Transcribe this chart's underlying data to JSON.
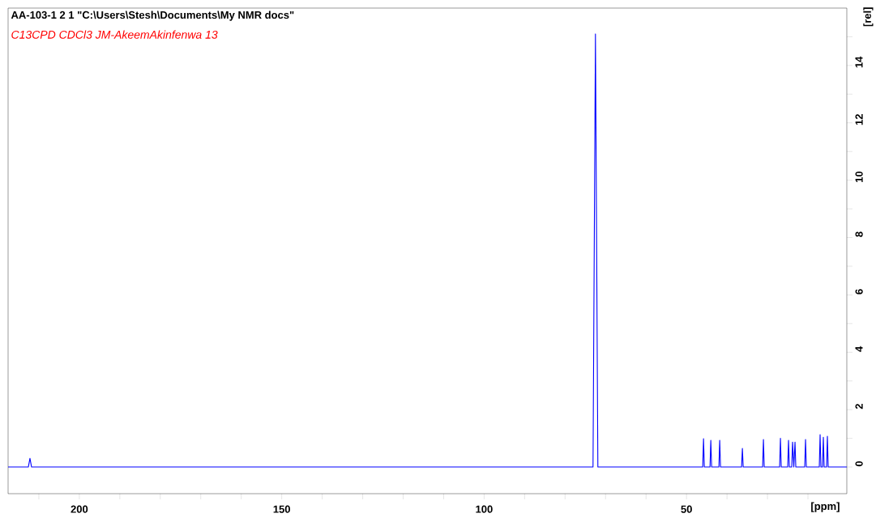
{
  "chart_data": {
    "type": "line",
    "title": "AA-103-1  2  1  \"C:\\Users\\Stesh\\Documents\\My NMR docs\"",
    "subtitle": "C13CPD CDCl3 JM-AkeemAkinfenwa 13",
    "xlabel": "[ppm]",
    "ylabel": "[rel]",
    "x": [
      217.6,
      212.6,
      212.2,
      211.8,
      73.1,
      72.5,
      71.9,
      46.0,
      45.8,
      45.6,
      44.2,
      44.0,
      43.8,
      42.0,
      41.8,
      41.6,
      36.4,
      36.2,
      36.0,
      31.2,
      31.0,
      30.8,
      27.0,
      26.8,
      26.6,
      25.0,
      24.8,
      24.6,
      24.0,
      23.8,
      23.5,
      23.2,
      23.0,
      20.8,
      20.6,
      20.4,
      17.2,
      17.0,
      16.8,
      16.4,
      16.2,
      16.0,
      15.4,
      15.2,
      15.0,
      10.4
    ],
    "series": [
      {
        "color": "#0000ff",
        "values": [
          0,
          0,
          0.3,
          0,
          0,
          15.1,
          0,
          0,
          0.99,
          0,
          0,
          0.93,
          0,
          0,
          0.93,
          0,
          0,
          0.65,
          0,
          0,
          0.96,
          0,
          0,
          1.0,
          0,
          0,
          0.93,
          0,
          0,
          0.87,
          0,
          0.87,
          0,
          0,
          0.96,
          0,
          0,
          1.13,
          0,
          0,
          1.04,
          0,
          0,
          1.07,
          0,
          0
        ]
      }
    ],
    "xlim": [
      217.6,
      10.4
    ],
    "ylim": [
      -0.93,
      16
    ],
    "xticks": [
      {
        "value": 210,
        "label": null
      },
      200,
      {
        "value": 190,
        "label": null
      },
      {
        "value": 180,
        "label": null
      },
      {
        "value": 170,
        "label": null
      },
      {
        "value": 160,
        "label": null
      },
      150,
      {
        "value": 140,
        "label": null
      },
      {
        "value": 130,
        "label": null
      },
      {
        "value": 120,
        "label": null
      },
      {
        "value": 110,
        "label": null
      },
      100,
      {
        "value": 90,
        "label": null
      },
      {
        "value": 80,
        "label": null
      },
      {
        "value": 70,
        "label": null
      },
      {
        "value": 60,
        "label": null
      },
      50,
      {
        "value": 40,
        "label": null
      },
      {
        "value": 30,
        "label": null
      },
      {
        "value": 20,
        "label": null
      }
    ],
    "yticks": [
      0,
      {
        "value": 1,
        "label": null
      },
      2,
      {
        "value": 3,
        "label": null
      },
      4,
      {
        "value": 5,
        "label": null
      },
      6,
      {
        "value": 7,
        "label": null
      },
      8,
      {
        "value": 9,
        "label": null
      },
      10,
      {
        "value": 11,
        "label": null
      },
      12,
      {
        "value": 13,
        "label": null
      },
      14,
      {
        "value": 15,
        "label": null
      }
    ],
    "marker": "none",
    "line_style": "solid"
  }
}
